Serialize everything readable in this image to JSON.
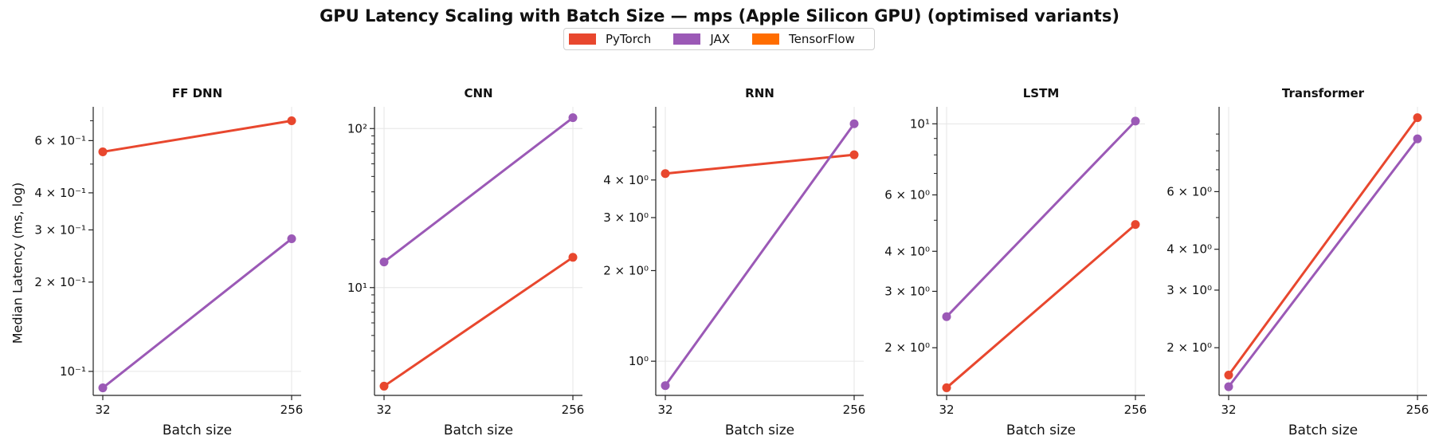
{
  "title": "GPU Latency Scaling with Batch Size — mps (Apple Silicon GPU)  (optimised variants)",
  "ylabel": "Median Latency (ms, log)",
  "legend": [
    {
      "name": "PyTorch",
      "color": "#e8472e"
    },
    {
      "name": "JAX",
      "color": "#9b59b6"
    },
    {
      "name": "TensorFlow",
      "color": "#ff6d00"
    }
  ],
  "chart_data": [
    {
      "type": "line",
      "title": "FF DNN",
      "xlabel": "Batch size",
      "yscale": "log",
      "categories": [
        "32",
        "256"
      ],
      "ylim": [
        0.083,
        0.78
      ],
      "yticks": [
        {
          "value": 0.1,
          "label": "10⁻¹",
          "grid": true
        },
        {
          "value": 0.2,
          "label": "2 × 10⁻¹"
        },
        {
          "value": 0.3,
          "label": "3 × 10⁻¹"
        },
        {
          "value": 0.4,
          "label": "4 × 10⁻¹"
        },
        {
          "value": 0.6,
          "label": "6 × 10⁻¹"
        }
      ],
      "minor": [
        0.5,
        0.7
      ],
      "series": [
        {
          "name": "PyTorch",
          "values": [
            0.55,
            0.7
          ]
        },
        {
          "name": "JAX",
          "values": [
            0.088,
            0.28
          ]
        }
      ]
    },
    {
      "type": "line",
      "title": "CNN",
      "xlabel": "Batch size",
      "yscale": "log",
      "categories": [
        "32",
        "256"
      ],
      "ylim": [
        2.1,
        137
      ],
      "yticks": [
        {
          "value": 10,
          "label": "10¹",
          "grid": true
        },
        {
          "value": 100,
          "label": "10²",
          "grid": true
        }
      ],
      "minor": [
        3,
        4,
        5,
        6,
        7,
        8,
        9,
        20,
        30,
        40,
        50,
        60,
        70,
        80,
        90
      ],
      "series": [
        {
          "name": "PyTorch",
          "values": [
            2.4,
            15.5
          ]
        },
        {
          "name": "JAX",
          "values": [
            14.5,
            117
          ]
        }
      ]
    },
    {
      "type": "line",
      "title": "RNN",
      "xlabel": "Batch size",
      "yscale": "log",
      "categories": [
        "32",
        "256"
      ],
      "ylim": [
        0.77,
        7.0
      ],
      "yticks": [
        {
          "value": 1,
          "label": "10⁰",
          "grid": true
        },
        {
          "value": 2,
          "label": "2 × 10⁰"
        },
        {
          "value": 3,
          "label": "3 × 10⁰"
        },
        {
          "value": 4,
          "label": "4 × 10⁰"
        }
      ],
      "minor": [
        5,
        6
      ],
      "series": [
        {
          "name": "PyTorch",
          "values": [
            4.2,
            4.85
          ]
        },
        {
          "name": "JAX",
          "values": [
            0.83,
            6.15
          ]
        }
      ]
    },
    {
      "type": "line",
      "title": "LSTM",
      "xlabel": "Batch size",
      "yscale": "log",
      "categories": [
        "32",
        "256"
      ],
      "ylim": [
        1.42,
        11.3
      ],
      "yticks": [
        {
          "value": 2,
          "label": "2 × 10⁰"
        },
        {
          "value": 3,
          "label": "3 × 10⁰"
        },
        {
          "value": 4,
          "label": "4 × 10⁰"
        },
        {
          "value": 6,
          "label": "6 × 10⁰"
        },
        {
          "value": 10,
          "label": "10¹",
          "grid": true
        }
      ],
      "minor": [
        5,
        7,
        8,
        9
      ],
      "series": [
        {
          "name": "PyTorch",
          "values": [
            1.5,
            4.85
          ]
        },
        {
          "name": "JAX",
          "values": [
            2.5,
            10.2
          ]
        }
      ]
    },
    {
      "type": "line",
      "title": "Transformer",
      "xlabel": "Batch size",
      "yscale": "log",
      "categories": [
        "32",
        "256"
      ],
      "ylim": [
        1.43,
        10.9
      ],
      "yticks": [
        {
          "value": 2,
          "label": "2 × 10⁰"
        },
        {
          "value": 3,
          "label": "3 × 10⁰"
        },
        {
          "value": 4,
          "label": "4 × 10⁰"
        },
        {
          "value": 6,
          "label": "6 × 10⁰"
        }
      ],
      "minor": [
        5,
        7,
        8,
        9
      ],
      "series": [
        {
          "name": "PyTorch",
          "values": [
            1.65,
            10.1
          ]
        },
        {
          "name": "JAX",
          "values": [
            1.52,
            8.7
          ]
        }
      ]
    }
  ]
}
